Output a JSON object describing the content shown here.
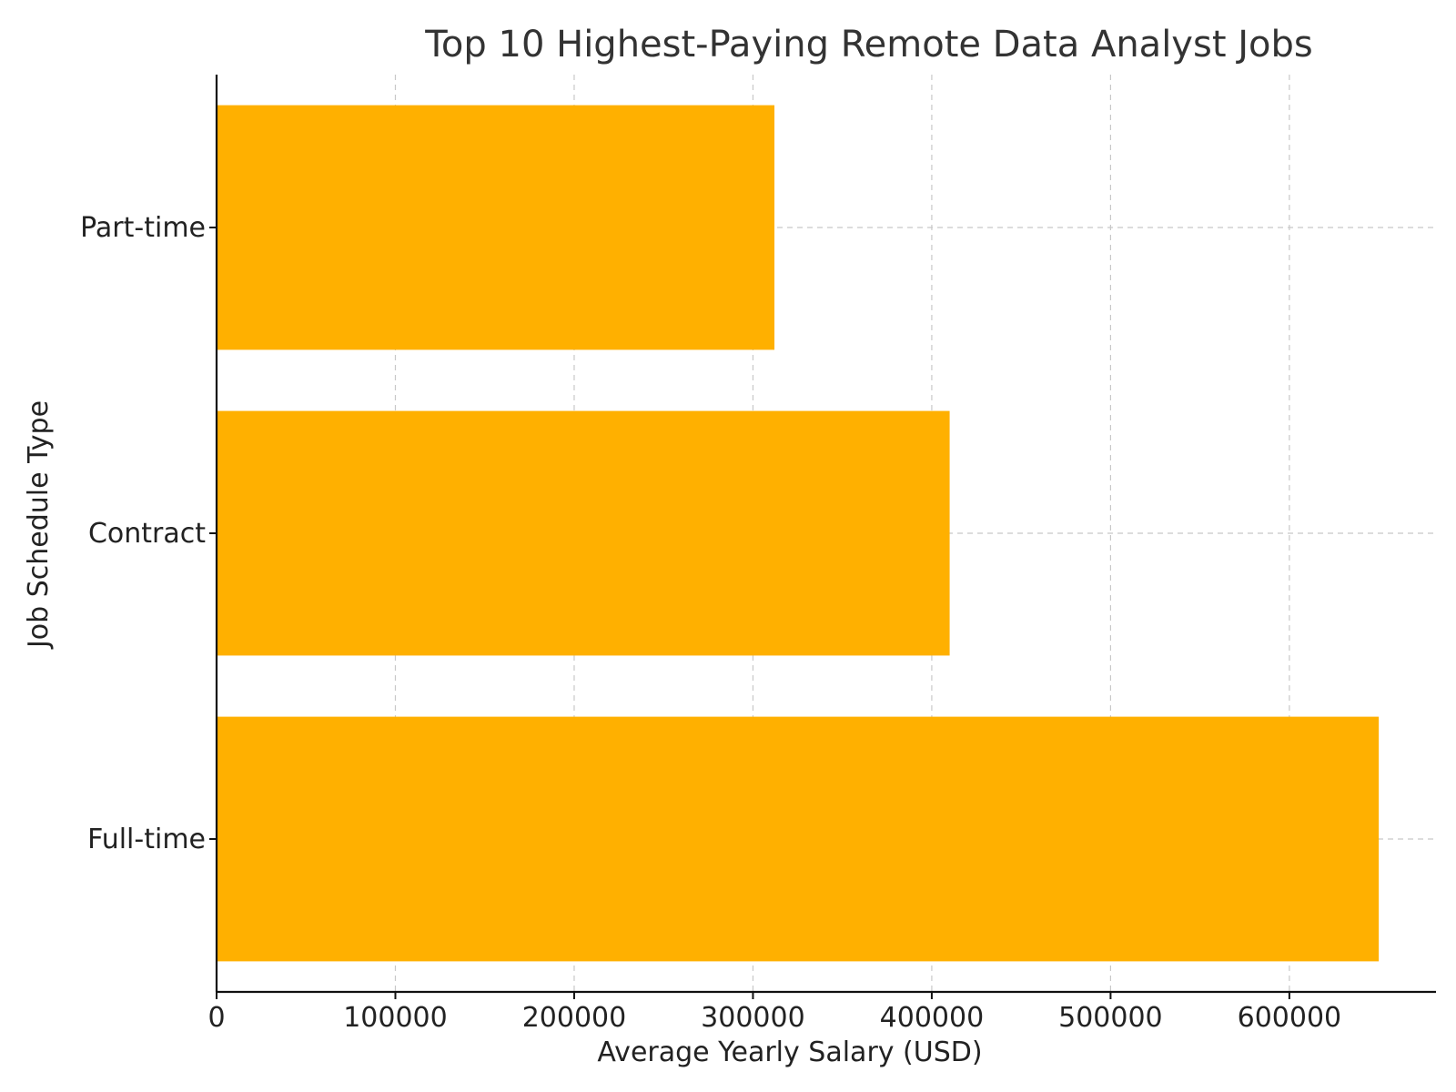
{
  "chart_data": {
    "type": "bar",
    "orientation": "horizontal",
    "title": "Top 10 Highest-Paying Remote Data Analyst Jobs",
    "xlabel": "Average Yearly Salary (USD)",
    "ylabel": "Job Schedule Type",
    "categories": [
      "Part-time",
      "Contract",
      "Full-time"
    ],
    "values": [
      312000,
      410000,
      650000
    ],
    "xlim": [
      0,
      682000
    ],
    "xticks": [
      0,
      100000,
      200000,
      300000,
      400000,
      500000,
      600000
    ],
    "bar_color": "#FFB000",
    "grid": true,
    "legend": "none"
  }
}
